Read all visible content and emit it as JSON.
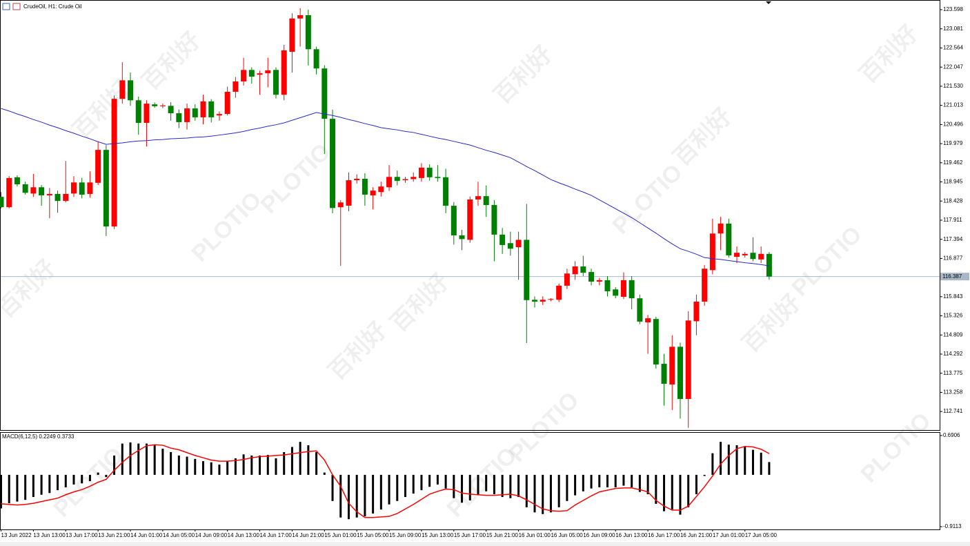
{
  "chart_data": [
    {
      "type": "candlestick",
      "title": "CrudeOil, H1:  Crude Oil",
      "categories": [
        "13 Jun 2022",
        null,
        null,
        null,
        "13 Jun 13:00",
        null,
        null,
        null,
        "13 Jun 17:00",
        null,
        null,
        null,
        "13 Jun 21:00",
        null,
        null,
        null,
        "14 Jun 01:00",
        null,
        null,
        null,
        "14 Jun 05:00",
        null,
        null,
        null,
        "14 Jun 09:00",
        null,
        null,
        null,
        "14 Jun 13:00",
        null,
        null,
        null,
        "14 Jun 17:00",
        null,
        null,
        null,
        "14 Jun 21:00",
        null,
        null,
        null,
        "15 Jun 01:00",
        null,
        null,
        null,
        "15 Jun 05:00",
        null,
        null,
        null,
        "15 Jun 09:00",
        null,
        null,
        null,
        "15 Jun 13:00",
        null,
        null,
        null,
        "15 Jun 17:00",
        null,
        null,
        null,
        "15 Jun 21:00",
        null,
        null,
        null,
        "16 Jun 01:00",
        null,
        null,
        null,
        "16 Jun 05:00",
        null,
        null,
        null,
        "16 Jun 09:00",
        null,
        null,
        null,
        "16 Jun 13:00",
        null,
        null,
        null,
        "16 Jun 17:00",
        null,
        null,
        null,
        "16 Jun 21:00",
        null,
        null,
        null,
        "17 Jun 01:00",
        null,
        null,
        null,
        "17 Jun 05:00",
        null,
        null,
        null
      ],
      "open": [
        118.54,
        118.26,
        119.07,
        118.88,
        118.63,
        118.8,
        118.58,
        118.62,
        118.43,
        118.63,
        118.93,
        118.62,
        118.92,
        119.81,
        117.74,
        121.19,
        121.69,
        121.15,
        120.54,
        121.04,
        120.99,
        121.0,
        120.8,
        120.56,
        120.93,
        120.69,
        121.12,
        120.74,
        120.78,
        121.38,
        121.66,
        121.97,
        121.84,
        121.88,
        121.97,
        121.3,
        122.46,
        123.36,
        123.45,
        122.53,
        122.01,
        120.65,
        118.26,
        118.3,
        118.99,
        119.03,
        118.58,
        118.67,
        118.8,
        119.08,
        118.99,
        119.02,
        119.05,
        119.33,
        119.08,
        119.07,
        118.3,
        117.5,
        117.38,
        118.47,
        118.56,
        118.32,
        117.52,
        117.29,
        117.18,
        117.38,
        115.76,
        115.71,
        115.76,
        115.76,
        116.14,
        116.45,
        116.66,
        116.51,
        116.25,
        116.29,
        116.04,
        115.84,
        116.29,
        115.8,
        115.15,
        115.24,
        114.03,
        113.47,
        114.49,
        113.08,
        115.18,
        115.71,
        116.56,
        117.55,
        117.82,
        116.92,
        116.96,
        117.03,
        116.85,
        117.0
      ],
      "high": [
        118.67,
        119.1,
        119.12,
        118.95,
        119.16,
        118.86,
        118.78,
        118.71,
        119.51,
        119.1,
        119.05,
        119.23,
        120.03,
        119.94,
        121.28,
        122.18,
        121.9,
        121.25,
        121.15,
        121.09,
        121.06,
        121.1,
        120.9,
        121.06,
        121.04,
        121.3,
        121.18,
        120.85,
        121.52,
        121.78,
        122.3,
        122.04,
        121.95,
        122.3,
        122.04,
        122.65,
        123.5,
        123.64,
        123.6,
        122.6,
        122.1,
        120.9,
        118.45,
        119.2,
        119.15,
        119.18,
        118.8,
        118.95,
        119.4,
        119.25,
        119.08,
        119.2,
        119.45,
        119.42,
        119.4,
        119.3,
        118.4,
        117.65,
        118.55,
        118.95,
        118.85,
        118.45,
        117.7,
        117.6,
        117.6,
        118.35,
        115.85,
        115.85,
        115.8,
        116.2,
        116.6,
        116.8,
        116.95,
        116.6,
        116.35,
        116.4,
        116.1,
        116.5,
        116.4,
        115.9,
        115.35,
        115.3,
        114.3,
        114.8,
        114.6,
        115.45,
        115.9,
        116.7,
        117.95,
        118.0,
        117.95,
        117.2,
        117.05,
        117.45,
        117.2,
        117.05
      ],
      "low": [
        118.23,
        118.23,
        118.82,
        118.6,
        118.54,
        118.3,
        117.96,
        118.11,
        118.39,
        118.54,
        118.5,
        118.52,
        118.86,
        117.48,
        117.67,
        121.06,
        121.0,
        120.22,
        119.9,
        120.95,
        120.94,
        120.6,
        120.4,
        120.36,
        120.6,
        120.5,
        120.55,
        120.6,
        120.74,
        121.22,
        121.55,
        121.6,
        121.3,
        121.5,
        121.2,
        121.15,
        121.9,
        122.6,
        122.09,
        121.85,
        119.7,
        118.1,
        116.68,
        118.15,
        118.9,
        118.3,
        118.2,
        118.55,
        118.7,
        118.85,
        118.92,
        118.95,
        118.95,
        118.98,
        118.95,
        118.1,
        117.25,
        117.1,
        117.3,
        118.3,
        118.0,
        116.8,
        117.0,
        116.95,
        116.3,
        114.59,
        115.55,
        115.62,
        115.72,
        115.7,
        116.05,
        116.3,
        116.4,
        116.15,
        116.15,
        115.85,
        115.8,
        115.78,
        115.5,
        115.1,
        114.3,
        113.9,
        112.9,
        112.78,
        112.55,
        112.3,
        114.8,
        115.6,
        116.45,
        117.1,
        116.9,
        116.75,
        116.9,
        116.8,
        116.75,
        116.3
      ],
      "close": [
        118.26,
        119.05,
        118.88,
        118.65,
        118.8,
        118.58,
        118.62,
        118.43,
        118.62,
        118.93,
        118.6,
        118.93,
        119.81,
        117.74,
        121.19,
        121.69,
        121.15,
        120.54,
        121.06,
        120.99,
        121.01,
        120.8,
        120.56,
        120.93,
        120.69,
        121.12,
        120.69,
        120.78,
        121.38,
        121.66,
        121.97,
        121.79,
        121.88,
        121.96,
        121.3,
        122.5,
        123.36,
        123.45,
        122.53,
        122.01,
        120.65,
        118.24,
        118.39,
        118.99,
        119.03,
        118.6,
        118.71,
        118.82,
        119.08,
        118.97,
        119.02,
        119.08,
        119.33,
        119.07,
        119.05,
        118.3,
        117.5,
        117.4,
        118.47,
        118.56,
        118.32,
        117.52,
        117.24,
        117.14,
        117.38,
        115.75,
        115.71,
        115.76,
        115.78,
        116.14,
        116.47,
        116.66,
        116.49,
        116.25,
        116.29,
        115.99,
        115.87,
        116.29,
        115.8,
        115.17,
        115.26,
        114.01,
        113.49,
        114.49,
        113.08,
        115.2,
        115.71,
        116.6,
        117.55,
        117.82,
        116.96,
        117.03,
        117.0,
        116.86,
        117.0,
        116.387
      ],
      "up_color": "#ff0000",
      "down_color": "#008000",
      "ma": {
        "color": "#2828c8",
        "values": [
          120.93,
          120.86,
          120.78,
          120.71,
          120.63,
          120.56,
          120.48,
          120.41,
          120.33,
          120.26,
          120.18,
          120.11,
          120.03,
          119.96,
          119.98,
          120.0,
          120.03,
          120.05,
          120.06,
          120.08,
          120.09,
          120.11,
          120.12,
          120.13,
          120.15,
          120.16,
          120.18,
          120.21,
          120.24,
          120.27,
          120.31,
          120.36,
          120.4,
          120.45,
          120.49,
          120.54,
          120.61,
          120.68,
          120.75,
          120.82,
          120.78,
          120.74,
          120.69,
          120.63,
          120.58,
          120.52,
          120.47,
          120.41,
          120.38,
          120.35,
          120.31,
          120.28,
          120.23,
          120.18,
          120.13,
          120.09,
          120.04,
          119.99,
          119.94,
          119.87,
          119.8,
          119.74,
          119.67,
          119.6,
          119.48,
          119.36,
          119.25,
          119.13,
          119.01,
          118.92,
          118.84,
          118.75,
          118.67,
          118.58,
          118.46,
          118.34,
          118.22,
          118.1,
          117.98,
          117.84,
          117.7,
          117.56,
          117.41,
          117.27,
          117.14,
          117.07,
          116.99,
          116.9,
          116.87,
          116.85,
          116.82,
          116.79,
          116.76,
          116.74,
          116.71,
          116.68
        ]
      },
      "last_price": 116.387,
      "last_price_color": "#a8b8c8",
      "ylim": [
        112.24,
        123.86
      ],
      "yticks": [
        123.598,
        123.081,
        122.564,
        122.047,
        {
          "value": 121.53,
          "label": "121.530"
        },
        121.013,
        120.496,
        119.979,
        119.462,
        118.945,
        118.428,
        117.911,
        117.394,
        116.877,
        115.843,
        115.326,
        114.809,
        114.292,
        113.775,
        113.258,
        112.741
      ],
      "watermark": [
        "百利好",
        "PLOTIO"
      ]
    },
    {
      "type": "macd",
      "title": "MACD(6,12,5) 0.2249 0.3733",
      "histogram": {
        "color": "#000000",
        "values": [
          -0.59,
          -0.5,
          -0.47,
          -0.44,
          -0.39,
          -0.35,
          -0.32,
          -0.27,
          -0.22,
          -0.17,
          -0.15,
          -0.11,
          0.04,
          -0.04,
          0.34,
          0.55,
          0.57,
          0.55,
          0.55,
          0.52,
          0.46,
          0.4,
          0.34,
          0.32,
          0.28,
          0.24,
          0.22,
          0.18,
          0.24,
          0.29,
          0.36,
          0.34,
          0.34,
          0.35,
          0.29,
          0.4,
          0.49,
          0.58,
          0.52,
          0.4,
          0.04,
          -0.46,
          -0.75,
          -0.78,
          -0.75,
          -0.73,
          -0.68,
          -0.61,
          -0.52,
          -0.46,
          -0.39,
          -0.33,
          -0.27,
          -0.21,
          -0.17,
          -0.24,
          -0.41,
          -0.49,
          -0.45,
          -0.36,
          -0.29,
          -0.34,
          -0.39,
          -0.41,
          -0.39,
          -0.57,
          -0.66,
          -0.69,
          -0.66,
          -0.57,
          -0.46,
          -0.36,
          -0.29,
          -0.24,
          -0.22,
          -0.22,
          -0.22,
          -0.19,
          -0.22,
          -0.3,
          -0.34,
          -0.51,
          -0.64,
          -0.61,
          -0.7,
          -0.57,
          -0.34,
          -0.02,
          0.38,
          0.58,
          0.53,
          0.52,
          0.49,
          0.44,
          0.39,
          0.2249
        ]
      },
      "signal": {
        "color": "#ff0000",
        "values": [
          -0.51,
          -0.52,
          -0.53,
          -0.52,
          -0.5,
          -0.47,
          -0.44,
          -0.41,
          -0.35,
          -0.3,
          -0.26,
          -0.2,
          -0.13,
          -0.08,
          0.08,
          0.22,
          0.34,
          0.43,
          0.51,
          0.53,
          0.52,
          0.47,
          0.44,
          0.39,
          0.34,
          0.3,
          0.26,
          0.24,
          0.24,
          0.25,
          0.27,
          0.3,
          0.32,
          0.33,
          0.34,
          0.35,
          0.37,
          0.39,
          0.41,
          0.42,
          0.26,
          0.0,
          -0.2,
          -0.5,
          -0.65,
          -0.75,
          -0.75,
          -0.74,
          -0.73,
          -0.68,
          -0.6,
          -0.52,
          -0.43,
          -0.34,
          -0.29,
          -0.25,
          -0.26,
          -0.32,
          -0.34,
          -0.35,
          -0.36,
          -0.36,
          -0.35,
          -0.34,
          -0.37,
          -0.44,
          -0.52,
          -0.6,
          -0.63,
          -0.64,
          -0.63,
          -0.53,
          -0.45,
          -0.37,
          -0.3,
          -0.27,
          -0.24,
          -0.23,
          -0.23,
          -0.26,
          -0.3,
          -0.45,
          -0.55,
          -0.62,
          -0.62,
          -0.55,
          -0.38,
          -0.21,
          -0.02,
          0.19,
          0.34,
          0.46,
          0.5,
          0.49,
          0.45,
          0.3733
        ]
      },
      "ylim": [
        -0.9113,
        0.6906
      ],
      "yticks": [
        0.6906,
        -0.9113
      ]
    }
  ]
}
